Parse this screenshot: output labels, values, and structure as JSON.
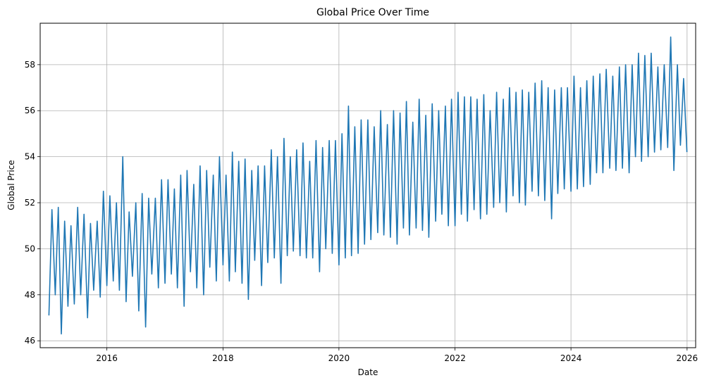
{
  "chart_data": {
    "type": "line",
    "title": "Global Price Over Time",
    "xlabel": "Date",
    "ylabel": "Global Price",
    "xlim": [
      "2014-11-07",
      "2026-02-24"
    ],
    "ylim": [
      45.7,
      59.8
    ],
    "x_ticks": [
      "2016",
      "2018",
      "2020",
      "2022",
      "2024",
      "2026"
    ],
    "y_ticks": [
      "46",
      "48",
      "50",
      "52",
      "54",
      "56",
      "58"
    ],
    "grid": true,
    "line_color": "#1f77b4",
    "series": [
      {
        "x": [
          "2015-01-01",
          "2015-01-20",
          "2015-02-10",
          "2015-03-01",
          "2015-03-20",
          "2015-04-10",
          "2015-05-01",
          "2015-05-20",
          "2015-06-10",
          "2015-07-01",
          "2015-07-20",
          "2015-08-10",
          "2015-09-01",
          "2015-09-20",
          "2015-10-10",
          "2015-11-01",
          "2015-11-20",
          "2015-12-10",
          "2016-01-01",
          "2016-01-20",
          "2016-02-10",
          "2016-03-01",
          "2016-03-20",
          "2016-04-10",
          "2016-05-01",
          "2016-05-20",
          "2016-06-10",
          "2016-07-01",
          "2016-07-20",
          "2016-08-10",
          "2016-09-01",
          "2016-09-20",
          "2016-10-10",
          "2016-11-01",
          "2016-11-20",
          "2016-12-10",
          "2017-01-01",
          "2017-01-20",
          "2017-02-10",
          "2017-03-01",
          "2017-03-20",
          "2017-04-10",
          "2017-05-01",
          "2017-05-20",
          "2017-06-10",
          "2017-07-01",
          "2017-07-20",
          "2017-08-10",
          "2017-09-01",
          "2017-09-20",
          "2017-10-10",
          "2017-11-01",
          "2017-11-20",
          "2017-12-10",
          "2018-01-01",
          "2018-01-20",
          "2018-02-10",
          "2018-03-01",
          "2018-03-20",
          "2018-04-10",
          "2018-05-01",
          "2018-05-20",
          "2018-06-10",
          "2018-07-01",
          "2018-07-20",
          "2018-08-10",
          "2018-09-01",
          "2018-09-20",
          "2018-10-10",
          "2018-11-01",
          "2018-11-20",
          "2018-12-10",
          "2019-01-01",
          "2019-01-20",
          "2019-02-10",
          "2019-03-01",
          "2019-03-20",
          "2019-04-10",
          "2019-05-01",
          "2019-05-20",
          "2019-06-10",
          "2019-07-01",
          "2019-07-20",
          "2019-08-10",
          "2019-09-01",
          "2019-09-20",
          "2019-10-10",
          "2019-11-01",
          "2019-11-20",
          "2019-12-10",
          "2020-01-01",
          "2020-01-20",
          "2020-02-10",
          "2020-03-01",
          "2020-03-20",
          "2020-04-10",
          "2020-05-01",
          "2020-05-20",
          "2020-06-10",
          "2020-07-01",
          "2020-07-20",
          "2020-08-10",
          "2020-09-01",
          "2020-09-20",
          "2020-10-10",
          "2020-11-01",
          "2020-11-20",
          "2020-12-10",
          "2021-01-01",
          "2021-01-20",
          "2021-02-10",
          "2021-03-01",
          "2021-03-20",
          "2021-04-10",
          "2021-05-01",
          "2021-05-20",
          "2021-06-10",
          "2021-07-01",
          "2021-07-20",
          "2021-08-10",
          "2021-09-01",
          "2021-09-20",
          "2021-10-10",
          "2021-11-01",
          "2021-11-20",
          "2021-12-10",
          "2022-01-01",
          "2022-01-20",
          "2022-02-10",
          "2022-03-01",
          "2022-03-20",
          "2022-04-10",
          "2022-05-01",
          "2022-05-20",
          "2022-06-10",
          "2022-07-01",
          "2022-07-20",
          "2022-08-10",
          "2022-09-01",
          "2022-09-20",
          "2022-10-10",
          "2022-11-01",
          "2022-11-20",
          "2022-12-10",
          "2023-01-01",
          "2023-01-20",
          "2023-02-10",
          "2023-03-01",
          "2023-03-20",
          "2023-04-10",
          "2023-05-01",
          "2023-05-20",
          "2023-06-10",
          "2023-07-01",
          "2023-07-20",
          "2023-08-10",
          "2023-09-01",
          "2023-09-20",
          "2023-10-10",
          "2023-11-01",
          "2023-11-20",
          "2023-12-10",
          "2024-01-01",
          "2024-01-20",
          "2024-02-10",
          "2024-03-01",
          "2024-03-20",
          "2024-04-10",
          "2024-05-01",
          "2024-05-20",
          "2024-06-10",
          "2024-07-01",
          "2024-07-20",
          "2024-08-10",
          "2024-09-01",
          "2024-09-20",
          "2024-10-10",
          "2024-11-01",
          "2024-11-20",
          "2024-12-10",
          "2025-01-01",
          "2025-01-20",
          "2025-02-10",
          "2025-03-01",
          "2025-03-20",
          "2025-04-10",
          "2025-05-01",
          "2025-05-20",
          "2025-06-10",
          "2025-07-01",
          "2025-07-20",
          "2025-08-10",
          "2025-09-01",
          "2025-09-20",
          "2025-10-10",
          "2025-11-01",
          "2025-11-20",
          "2025-12-10",
          "2025-12-31"
        ],
        "y": [
          47.1,
          51.7,
          48.0,
          51.8,
          46.3,
          51.2,
          47.5,
          51.0,
          47.6,
          51.8,
          48.0,
          51.5,
          47.0,
          51.1,
          48.2,
          51.2,
          47.9,
          52.5,
          48.4,
          52.3,
          48.6,
          52.0,
          48.2,
          54.0,
          47.7,
          51.6,
          48.8,
          52.0,
          47.3,
          52.4,
          46.6,
          52.2,
          48.9,
          52.2,
          48.3,
          53.0,
          48.5,
          53.0,
          48.9,
          52.6,
          48.3,
          53.2,
          47.5,
          53.4,
          49.0,
          52.8,
          48.3,
          53.6,
          48.0,
          53.4,
          49.2,
          53.2,
          48.6,
          54.0,
          49.3,
          53.2,
          48.6,
          54.2,
          49.0,
          53.8,
          48.5,
          53.9,
          47.8,
          53.4,
          49.5,
          53.6,
          48.4,
          53.6,
          49.4,
          54.3,
          49.6,
          54.0,
          48.5,
          54.8,
          49.7,
          54.0,
          49.9,
          54.3,
          49.7,
          54.6,
          49.6,
          53.8,
          49.6,
          54.7,
          49.0,
          54.4,
          50.0,
          54.7,
          49.8,
          54.7,
          49.3,
          55.0,
          49.6,
          56.2,
          49.7,
          55.3,
          49.8,
          55.6,
          50.2,
          55.6,
          50.4,
          55.3,
          50.7,
          56.0,
          50.6,
          55.4,
          50.5,
          56.0,
          50.2,
          55.9,
          50.9,
          56.4,
          50.6,
          55.5,
          50.9,
          56.5,
          50.8,
          55.8,
          50.5,
          56.3,
          51.2,
          56.0,
          51.5,
          56.2,
          51.0,
          56.5,
          51.0,
          56.8,
          51.5,
          56.6,
          51.2,
          56.6,
          51.7,
          56.5,
          51.3,
          56.7,
          51.5,
          56.0,
          51.8,
          56.8,
          52.0,
          56.5,
          51.6,
          57.0,
          52.3,
          56.8,
          52.0,
          56.9,
          51.9,
          56.8,
          52.5,
          57.2,
          52.3,
          57.3,
          52.1,
          57.0,
          51.3,
          56.9,
          52.4,
          57.0,
          52.6,
          57.0,
          52.5,
          57.5,
          52.6,
          57.0,
          52.7,
          57.3,
          52.8,
          57.5,
          53.3,
          57.6,
          53.3,
          57.8,
          53.5,
          57.5,
          53.4,
          57.9,
          53.5,
          58.0,
          53.3,
          58.0,
          54.0,
          58.5,
          53.8,
          58.4,
          54.0,
          58.5,
          54.2,
          57.9,
          54.3,
          58.0,
          54.4,
          59.2,
          53.4,
          58.0,
          54.5,
          57.4,
          54.2
        ]
      }
    ]
  }
}
